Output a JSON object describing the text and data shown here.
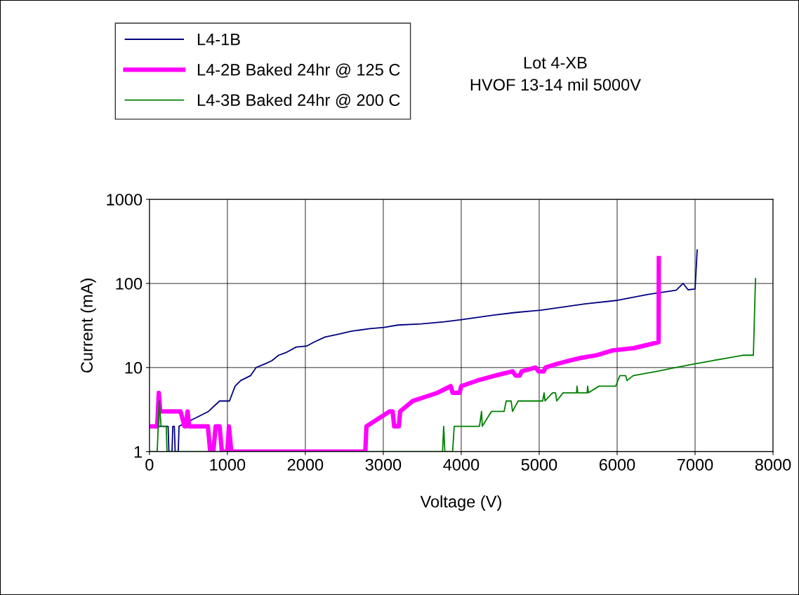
{
  "chart_data": {
    "type": "line",
    "title": "Lot 4-XB",
    "subtitle": "HVOF 13-14 mil 5000V",
    "xlabel": "Voltage (V)",
    "ylabel": "Current (mA)",
    "log": "y",
    "xlim": [
      0,
      8000
    ],
    "xticks": [
      0,
      1000,
      2000,
      3000,
      4000,
      5000,
      6000,
      7000,
      8000
    ],
    "ylim": [
      1,
      1000
    ],
    "yticks": [
      1,
      10,
      100,
      1000
    ],
    "grid": true,
    "legend": "top left",
    "marker": "none",
    "line_style": "solid",
    "series": [
      {
        "name": "L4-1B",
        "color": "#000080",
        "x": [
          0,
          240,
          250,
          290,
          300,
          320,
          330,
          370,
          380,
          757,
          900,
          919,
          1027,
          1099,
          1171,
          1297,
          1369,
          1477,
          1568,
          1658,
          1748,
          1883,
          2018,
          2108,
          2252,
          2432,
          2586,
          2829,
          3009,
          3189,
          3486,
          3784,
          4000,
          4414,
          4685,
          5018,
          5288,
          5586,
          6009,
          6396,
          6757,
          6847,
          6910,
          7000,
          7027
        ],
        "values": [
          2,
          2,
          1,
          1,
          2,
          2,
          1,
          1,
          2,
          3,
          4,
          4,
          4,
          6,
          7,
          8,
          10,
          11,
          12,
          14,
          15,
          17.5,
          18,
          20,
          23,
          25,
          27,
          29,
          30,
          32,
          33,
          35,
          37,
          42,
          45,
          48,
          52,
          57,
          63,
          74,
          83,
          100,
          84,
          86,
          250
        ]
      },
      {
        "name": "L4-2B Baked 24hr @ 125 C",
        "color": "#ff00ff",
        "x": [
          0,
          100,
          120,
          140,
          400,
          450,
          470,
          490,
          510,
          750,
          780,
          820,
          850,
          900,
          930,
          1000,
          1020,
          1050,
          1450,
          2770,
          2784,
          3081,
          3120,
          3140,
          3200,
          3216,
          3378,
          3694,
          3865,
          3890,
          3910,
          3980,
          4000,
          4207,
          4432,
          4658,
          4700,
          4750,
          4775,
          4955,
          4991,
          5060,
          5081,
          5225,
          5378,
          5532,
          5739,
          5946,
          6216,
          6432,
          6532,
          6535
        ],
        "values": [
          2,
          2,
          5,
          3,
          3,
          2,
          2,
          3,
          2,
          2,
          1,
          1,
          2,
          2,
          1,
          1,
          2,
          1,
          1,
          1,
          2,
          3,
          3,
          2,
          2,
          3,
          4,
          5,
          6,
          5,
          5,
          5,
          6,
          7,
          8,
          9,
          8,
          8,
          9,
          10,
          9,
          9,
          10,
          11,
          12,
          13,
          14,
          16,
          17,
          19,
          20,
          200
        ]
      },
      {
        "name": "L4-3B Baked 24hr @ 200 C",
        "color": "#008000",
        "x": [
          0,
          100,
          126,
          150,
          216,
          225,
          3760,
          3775,
          3790,
          3800,
          3890,
          3910,
          4234,
          4261,
          4270,
          4387,
          4550,
          4577,
          4640,
          4658,
          4730,
          5045,
          5063,
          5075,
          5171,
          5210,
          5225,
          5306,
          5480,
          5486,
          5495,
          5615,
          5622,
          5632,
          5766,
          5982,
          6009,
          6036,
          6110,
          6126,
          6207,
          6504,
          6748,
          6982,
          7207,
          7423,
          7612,
          7748,
          7775
        ],
        "values": [
          1,
          1,
          4,
          2,
          2,
          1,
          1,
          2,
          1,
          1,
          1,
          2,
          2,
          3,
          2,
          3,
          3,
          4,
          4,
          3,
          4,
          4,
          5,
          4,
          5,
          5,
          4,
          5,
          5,
          6,
          5,
          5,
          6,
          5,
          6,
          6,
          7,
          8,
          8,
          7,
          8,
          9,
          10,
          11,
          12,
          13,
          14,
          14,
          114
        ]
      }
    ]
  }
}
